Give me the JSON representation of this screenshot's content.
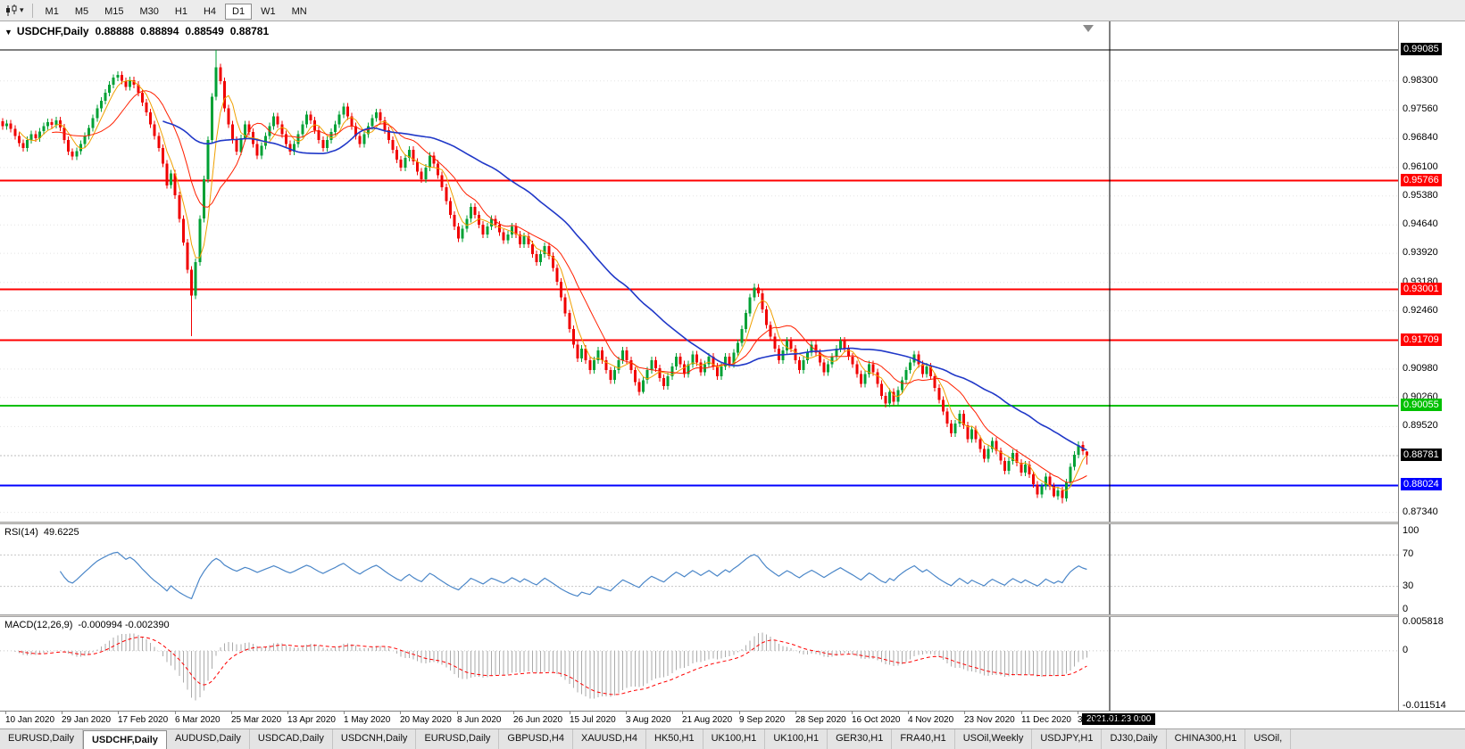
{
  "toolbar": {
    "timeframes": [
      {
        "label": "M1",
        "active": false
      },
      {
        "label": "M5",
        "active": false
      },
      {
        "label": "M15",
        "active": false
      },
      {
        "label": "M30",
        "active": false
      },
      {
        "label": "H1",
        "active": false
      },
      {
        "label": "H4",
        "active": false
      },
      {
        "label": "D1",
        "active": true
      },
      {
        "label": "W1",
        "active": false
      },
      {
        "label": "MN",
        "active": false
      }
    ],
    "chart_type_caret": "▾"
  },
  "chart": {
    "symbol_header": {
      "collapse_icon": "▼",
      "title": "USDCHF,Daily",
      "open": "0.88888",
      "high": "0.88894",
      "low": "0.88549",
      "close": "0.88781"
    },
    "price_scale": {
      "gridlines": [
        {
          "price": 0.983,
          "text": "0.98300"
        },
        {
          "price": 0.9756,
          "text": "0.97560"
        },
        {
          "price": 0.9684,
          "text": "0.96840"
        },
        {
          "price": 0.961,
          "text": "0.96100"
        },
        {
          "price": 0.9538,
          "text": "0.95380"
        },
        {
          "price": 0.9464,
          "text": "0.94640"
        },
        {
          "price": 0.9392,
          "text": "0.93920"
        },
        {
          "price": 0.9318,
          "text": "0.93180"
        },
        {
          "price": 0.9246,
          "text": "0.92460"
        },
        {
          "price": 0.9098,
          "text": "0.90980"
        },
        {
          "price": 0.9026,
          "text": "0.90260"
        },
        {
          "price": 0.8952,
          "text": "0.89520"
        },
        {
          "price": 0.8734,
          "text": "0.87340"
        }
      ]
    },
    "rsi": {
      "label": "RSI(14)",
      "value": "49.6225",
      "levels": [
        {
          "value": 100,
          "text": "100"
        },
        {
          "value": 70,
          "text": "70"
        },
        {
          "value": 30,
          "text": "30"
        },
        {
          "value": 0,
          "text": "0"
        }
      ],
      "line_color": "#4a86c8"
    },
    "macd": {
      "label": "MACD(12,26,9)",
      "values_text": "-0.000994 -0.002390",
      "scale_max": "0.005818",
      "scale_zero": "0",
      "scale_min": "-0.011514",
      "histogram_color": "#aaaaaa",
      "signal_color": "#ff0000"
    },
    "time_axis": {
      "labels": [
        "10 Jan 2020",
        "29 Jan 2020",
        "17 Feb 2020",
        "6 Mar 2020",
        "25 Mar 2020",
        "13 Apr 2020",
        "1 May 2020",
        "20 May 2020",
        "8 Jun 2020",
        "26 Jun 2020",
        "15 Jul 2020",
        "3 Aug 2020",
        "21 Aug 2020",
        "9 Sep 2020",
        "28 Sep 2020",
        "16 Oct 2020",
        "4 Nov 2020",
        "23 Nov 2020",
        "11 Dec 2020",
        "31 Dec 2020"
      ],
      "current_label": "2021.01.23 0:00"
    }
  },
  "chart_data": {
    "type": "candlestick",
    "symbol": "USDCHF",
    "timeframe": "Daily",
    "y_range": [
      0.8715,
      0.9945
    ],
    "bid": 0.88781,
    "bid_label": "0.88781",
    "current_ohlc": {
      "open": 0.88888,
      "high": 0.88894,
      "low": 0.88549,
      "close": 0.88781
    },
    "colors": {
      "up": "#00a135",
      "down": "#f00000"
    },
    "price_lines": [
      {
        "price": 0.99085,
        "label": "0.99085",
        "color": "#000000",
        "width": 1
      },
      {
        "price": 0.95766,
        "label": "0.95766",
        "color": "#ff0000",
        "width": 2
      },
      {
        "price": 0.93001,
        "label": "0.93001",
        "color": "#ff0000",
        "width": 2
      },
      {
        "price": 0.91709,
        "label": "0.91709",
        "color": "#ff0000",
        "width": 2
      },
      {
        "price": 0.90055,
        "label": "0.90055",
        "color": "#00c000",
        "width": 2
      },
      {
        "price": 0.88024,
        "label": "0.88024",
        "color": "#0000ff",
        "width": 2
      }
    ],
    "moving_averages": [
      {
        "period": 5,
        "color": "#f0a000",
        "width": 1
      },
      {
        "period": 13,
        "color": "#ff2000",
        "width": 1
      },
      {
        "period": 40,
        "color": "#2038c8",
        "width": 1.6
      }
    ],
    "closes": [
      0.9715,
      0.9722,
      0.9708,
      0.969,
      0.9672,
      0.966,
      0.968,
      0.9695,
      0.9685,
      0.9702,
      0.9715,
      0.9725,
      0.9718,
      0.973,
      0.9712,
      0.968,
      0.965,
      0.9638,
      0.9652,
      0.967,
      0.969,
      0.971,
      0.9735,
      0.976,
      0.978,
      0.98,
      0.982,
      0.9838,
      0.9845,
      0.983,
      0.9815,
      0.9832,
      0.982,
      0.98,
      0.9775,
      0.975,
      0.972,
      0.969,
      0.966,
      0.962,
      0.9565,
      0.9595,
      0.954,
      0.948,
      0.942,
      0.935,
      0.9285,
      0.937,
      0.948,
      0.958,
      0.968,
      0.979,
      0.9865,
      0.983,
      0.976,
      0.972,
      0.968,
      0.965,
      0.9685,
      0.972,
      0.97,
      0.967,
      0.964,
      0.9665,
      0.969,
      0.9715,
      0.974,
      0.972,
      0.9695,
      0.967,
      0.965,
      0.967,
      0.9695,
      0.972,
      0.9745,
      0.973,
      0.9705,
      0.968,
      0.966,
      0.968,
      0.97,
      0.972,
      0.9745,
      0.9765,
      0.974,
      0.9715,
      0.969,
      0.967,
      0.9695,
      0.9715,
      0.9735,
      0.975,
      0.973,
      0.9705,
      0.968,
      0.9655,
      0.963,
      0.961,
      0.9635,
      0.9655,
      0.9625,
      0.96,
      0.958,
      0.961,
      0.964,
      0.962,
      0.959,
      0.956,
      0.9525,
      0.949,
      0.946,
      0.943,
      0.9455,
      0.948,
      0.951,
      0.949,
      0.9465,
      0.944,
      0.946,
      0.948,
      0.9465,
      0.9445,
      0.9425,
      0.944,
      0.946,
      0.944,
      0.9415,
      0.9435,
      0.9415,
      0.939,
      0.937,
      0.939,
      0.941,
      0.9385,
      0.9355,
      0.932,
      0.928,
      0.924,
      0.92,
      0.916,
      0.9125,
      0.915,
      0.912,
      0.9095,
      0.912,
      0.9145,
      0.912,
      0.9095,
      0.907,
      0.9095,
      0.912,
      0.9145,
      0.912,
      0.9095,
      0.9065,
      0.904,
      0.907,
      0.9095,
      0.912,
      0.91,
      0.9075,
      0.9055,
      0.908,
      0.9105,
      0.913,
      0.911,
      0.9085,
      0.911,
      0.9135,
      0.9115,
      0.909,
      0.911,
      0.913,
      0.9105,
      0.908,
      0.9105,
      0.913,
      0.911,
      0.914,
      0.9165,
      0.92,
      0.924,
      0.928,
      0.9305,
      0.929,
      0.925,
      0.921,
      0.918,
      0.915,
      0.912,
      0.9145,
      0.917,
      0.915,
      0.912,
      0.9095,
      0.912,
      0.914,
      0.916,
      0.914,
      0.9115,
      0.909,
      0.911,
      0.913,
      0.915,
      0.917,
      0.915,
      0.913,
      0.911,
      0.9085,
      0.906,
      0.9085,
      0.911,
      0.909,
      0.906,
      0.903,
      0.901,
      0.904,
      0.9015,
      0.9045,
      0.907,
      0.9095,
      0.9115,
      0.9135,
      0.911,
      0.9085,
      0.9105,
      0.908,
      0.905,
      0.902,
      0.899,
      0.896,
      0.8935,
      0.896,
      0.8985,
      0.8955,
      0.892,
      0.8945,
      0.892,
      0.8895,
      0.887,
      0.8895,
      0.8915,
      0.889,
      0.8865,
      0.884,
      0.8865,
      0.8885,
      0.886,
      0.8835,
      0.8855,
      0.883,
      0.8805,
      0.878,
      0.88,
      0.8825,
      0.88,
      0.8775,
      0.879,
      0.877,
      0.881,
      0.885,
      0.888,
      0.8905,
      0.8889,
      0.88781
    ],
    "wick_overrides": {
      "46": {
        "low": 0.9182
      },
      "52": {
        "high": 0.99085
      },
      "143": {
        "low": 0.9085
      },
      "156": {
        "low": 0.9035
      },
      "183": {
        "high": 0.9315
      },
      "215": {
        "low": 0.9
      },
      "256": {
        "low": 0.8772
      },
      "258": {
        "low": 0.8757
      },
      "264": {
        "open": 0.88888,
        "high": 0.88894,
        "low": 0.88549
      }
    }
  },
  "tabs": {
    "items": [
      {
        "label": "EURUSD,Daily",
        "active": false
      },
      {
        "label": "USDCHF,Daily",
        "active": true
      },
      {
        "label": "AUDUSD,Daily",
        "active": false
      },
      {
        "label": "USDCAD,Daily",
        "active": false
      },
      {
        "label": "USDCNH,Daily",
        "active": false
      },
      {
        "label": "EURUSD,Daily",
        "active": false
      },
      {
        "label": "GBPUSD,H4",
        "active": false
      },
      {
        "label": "XAUUSD,H4",
        "active": false
      },
      {
        "label": "HK50,H1",
        "active": false
      },
      {
        "label": "UK100,H1",
        "active": false
      },
      {
        "label": "UK100,H1",
        "active": false
      },
      {
        "label": "GER30,H1",
        "active": false
      },
      {
        "label": "FRA40,H1",
        "active": false
      },
      {
        "label": "USOil,Weekly",
        "active": false
      },
      {
        "label": "USDJPY,H1",
        "active": false
      },
      {
        "label": "DJ30,Daily",
        "active": false
      },
      {
        "label": "CHINA300,H1",
        "active": false
      },
      {
        "label": "USOil,",
        "active": false
      }
    ]
  }
}
